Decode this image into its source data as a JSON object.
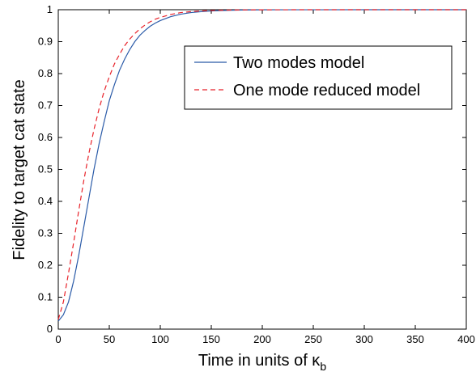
{
  "chart_data": {
    "type": "line",
    "title": "",
    "xlabel": "Time in units of κ",
    "xlabel_subscript": "b",
    "ylabel": "Fidelity to target cat state",
    "xlim": [
      0,
      400
    ],
    "ylim": [
      0,
      1
    ],
    "xticks": [
      0,
      50,
      100,
      150,
      200,
      250,
      300,
      350,
      400
    ],
    "yticks": [
      0,
      0.1,
      0.2,
      0.3,
      0.4,
      0.5,
      0.6,
      0.7,
      0.8,
      0.9,
      1
    ],
    "legend_position": "top-right",
    "grid": false,
    "series": [
      {
        "name": "Two modes model",
        "color": "#2b5ba8",
        "dash": "solid",
        "x": [
          0,
          5,
          10,
          15,
          20,
          25,
          30,
          35,
          40,
          45,
          50,
          55,
          60,
          65,
          70,
          75,
          80,
          85,
          90,
          95,
          100,
          110,
          120,
          130,
          140,
          150,
          160,
          170,
          180,
          190,
          200,
          225,
          250,
          300,
          350,
          400
        ],
        "y": [
          0.025,
          0.045,
          0.085,
          0.15,
          0.23,
          0.32,
          0.41,
          0.5,
          0.58,
          0.65,
          0.715,
          0.765,
          0.81,
          0.845,
          0.875,
          0.9,
          0.92,
          0.935,
          0.948,
          0.958,
          0.966,
          0.978,
          0.986,
          0.991,
          0.994,
          0.996,
          0.9975,
          0.9985,
          0.999,
          0.9993,
          0.9995,
          0.9998,
          0.9999,
          1,
          1,
          1
        ]
      },
      {
        "name": "One mode reduced model",
        "color": "#e8222a",
        "dash": "dashed",
        "x": [
          0,
          5,
          10,
          15,
          20,
          25,
          30,
          35,
          40,
          45,
          50,
          55,
          60,
          65,
          70,
          75,
          80,
          85,
          90,
          95,
          100,
          110,
          120,
          130,
          140,
          150,
          160,
          170,
          180,
          190,
          200,
          225,
          250,
          300,
          350,
          400
        ],
        "y": [
          0.03,
          0.085,
          0.175,
          0.27,
          0.37,
          0.465,
          0.55,
          0.625,
          0.69,
          0.745,
          0.79,
          0.83,
          0.86,
          0.887,
          0.908,
          0.925,
          0.94,
          0.952,
          0.962,
          0.97,
          0.976,
          0.985,
          0.991,
          0.994,
          0.996,
          0.9975,
          0.9985,
          0.999,
          0.9994,
          0.9996,
          0.9997,
          0.9999,
          1,
          1,
          1,
          1
        ]
      }
    ]
  }
}
